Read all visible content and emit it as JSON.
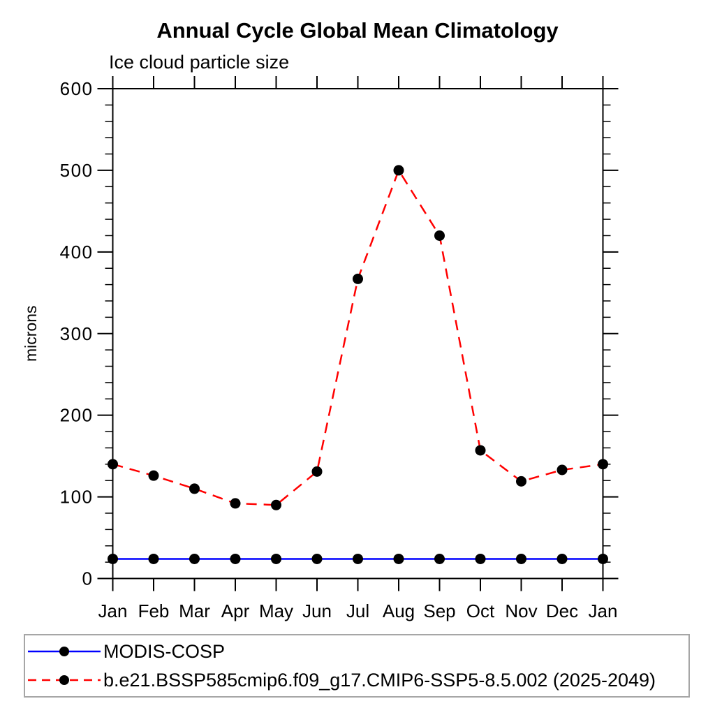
{
  "title": "Annual Cycle Global Mean Climatology",
  "subtitle": "Ice cloud particle size",
  "colors": {
    "background": "#ffffff",
    "axis": "#000000",
    "legend_border": "#a6a6a6"
  },
  "chart_data": {
    "type": "line",
    "categories": [
      "Jan",
      "Feb",
      "Mar",
      "Apr",
      "May",
      "Jun",
      "Jul",
      "Aug",
      "Sep",
      "Oct",
      "Nov",
      "Dec",
      "Jan"
    ],
    "title": "Annual Cycle Global Mean Climatology",
    "subtitle": "Ice cloud particle size",
    "xlabel": "",
    "ylabel": "microns",
    "ylim": [
      0,
      600
    ],
    "y_ticks": [
      0,
      100,
      200,
      300,
      400,
      500,
      600
    ],
    "y_major_step": 100,
    "y_minor_step": 20,
    "grid": false,
    "legend_position": "bottom",
    "series": [
      {
        "name": "MODIS-COSP",
        "color": "#0000ff",
        "style": "solid",
        "marker": "circle",
        "marker_color": "#000000",
        "values": [
          24,
          24,
          24,
          24,
          24,
          24,
          24,
          24,
          24,
          24,
          24,
          24,
          24
        ]
      },
      {
        "name": "b.e21.BSSP585cmip6.f09_g17.CMIP6-SSP5-8.5.002 (2025-2049)",
        "color": "#ff0000",
        "style": "dashed",
        "marker": "circle",
        "marker_color": "#000000",
        "values": [
          140,
          126,
          110,
          92,
          90,
          131,
          367,
          500,
          420,
          157,
          119,
          133,
          140
        ]
      }
    ]
  }
}
